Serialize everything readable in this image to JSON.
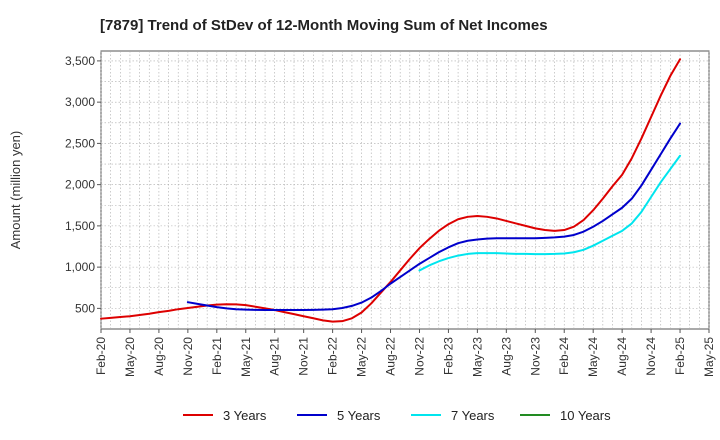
{
  "chart_data": {
    "type": "line",
    "title": "[7879]  Trend of StDev of 12-Month Moving Sum of Net Incomes",
    "xlabel": "",
    "ylabel": "Amount (million yen)",
    "x_ticks": [
      "Feb-20",
      "May-20",
      "Aug-20",
      "Nov-20",
      "Feb-21",
      "May-21",
      "Aug-21",
      "Nov-21",
      "Feb-22",
      "May-22",
      "Aug-22",
      "Nov-22",
      "Feb-23",
      "May-23",
      "Aug-23",
      "Nov-23",
      "Feb-24",
      "May-24",
      "Aug-24",
      "Nov-24",
      "Feb-25",
      "May-25"
    ],
    "y_ticks": [
      500,
      1000,
      1500,
      2000,
      2500,
      3000,
      3500
    ],
    "y_tick_labels": [
      "500",
      "1,000",
      "1,500",
      "2,000",
      "2,500",
      "3,000",
      "3,500"
    ],
    "ylim": [
      250,
      3620
    ],
    "xlim": [
      "Feb-20",
      "May-25"
    ],
    "grid": true,
    "legend_position": "bottom",
    "series": [
      {
        "name": "3 Years",
        "color": "#dd0000",
        "x": [
          "Feb-20",
          "Mar-20",
          "Apr-20",
          "May-20",
          "Jun-20",
          "Jul-20",
          "Aug-20",
          "Sep-20",
          "Oct-20",
          "Nov-20",
          "Dec-20",
          "Jan-21",
          "Feb-21",
          "Mar-21",
          "Apr-21",
          "May-21",
          "Jun-21",
          "Jul-21",
          "Aug-21",
          "Sep-21",
          "Oct-21",
          "Nov-21",
          "Dec-21",
          "Jan-22",
          "Feb-22",
          "Mar-22",
          "Apr-22",
          "May-22",
          "Jun-22",
          "Jul-22",
          "Aug-22",
          "Sep-22",
          "Oct-22",
          "Nov-22",
          "Dec-22",
          "Jan-23",
          "Feb-23",
          "Mar-23",
          "Apr-23",
          "May-23",
          "Jun-23",
          "Jul-23",
          "Aug-23",
          "Sep-23",
          "Oct-23",
          "Nov-23",
          "Dec-23",
          "Jan-24",
          "Feb-24",
          "Mar-24",
          "Apr-24",
          "May-24",
          "Jun-24",
          "Jul-24",
          "Aug-24",
          "Sep-24",
          "Oct-24",
          "Nov-24",
          "Dec-24",
          "Jan-25",
          "Feb-25"
        ],
        "values": [
          375,
          385,
          395,
          405,
          420,
          435,
          455,
          470,
          490,
          505,
          520,
          535,
          545,
          550,
          548,
          540,
          520,
          500,
          480,
          455,
          430,
          405,
          380,
          355,
          340,
          345,
          380,
          450,
          560,
          690,
          820,
          960,
          1100,
          1230,
          1340,
          1440,
          1520,
          1580,
          1610,
          1620,
          1610,
          1590,
          1560,
          1530,
          1500,
          1470,
          1450,
          1440,
          1450,
          1490,
          1570,
          1690,
          1830,
          1980,
          2120,
          2320,
          2560,
          2820,
          3080,
          3320,
          3520
        ]
      },
      {
        "name": "5 Years",
        "color": "#0000cc",
        "x": [
          "Nov-20",
          "Dec-20",
          "Jan-21",
          "Feb-21",
          "Mar-21",
          "Apr-21",
          "May-21",
          "Jun-21",
          "Jul-21",
          "Aug-21",
          "Sep-21",
          "Oct-21",
          "Nov-21",
          "Dec-21",
          "Jan-22",
          "Feb-22",
          "Mar-22",
          "Apr-22",
          "May-22",
          "Jun-22",
          "Jul-22",
          "Aug-22",
          "Sep-22",
          "Oct-22",
          "Nov-22",
          "Dec-22",
          "Jan-23",
          "Feb-23",
          "Mar-23",
          "Apr-23",
          "May-23",
          "Jun-23",
          "Jul-23",
          "Aug-23",
          "Sep-23",
          "Oct-23",
          "Nov-23",
          "Dec-23",
          "Jan-24",
          "Feb-24",
          "Mar-24",
          "Apr-24",
          "May-24",
          "Jun-24",
          "Jul-24",
          "Aug-24",
          "Sep-24",
          "Oct-24",
          "Nov-24",
          "Dec-24",
          "Jan-25",
          "Feb-25"
        ],
        "values": [
          575,
          555,
          535,
          515,
          500,
          490,
          485,
          482,
          480,
          480,
          480,
          480,
          480,
          482,
          485,
          490,
          505,
          530,
          570,
          630,
          710,
          800,
          880,
          960,
          1040,
          1110,
          1180,
          1240,
          1290,
          1320,
          1335,
          1345,
          1350,
          1350,
          1350,
          1350,
          1350,
          1355,
          1360,
          1370,
          1390,
          1430,
          1490,
          1560,
          1640,
          1720,
          1830,
          1990,
          2180,
          2370,
          2560,
          2740
        ]
      },
      {
        "name": "7 Years",
        "color": "#00e5ee",
        "x": [
          "Nov-22",
          "Dec-22",
          "Jan-23",
          "Feb-23",
          "Mar-23",
          "Apr-23",
          "May-23",
          "Jun-23",
          "Jul-23",
          "Aug-23",
          "Sep-23",
          "Oct-23",
          "Nov-23",
          "Dec-23",
          "Jan-24",
          "Feb-24",
          "Mar-24",
          "Apr-24",
          "May-24",
          "Jun-24",
          "Jul-24",
          "Aug-24",
          "Sep-24",
          "Oct-24",
          "Nov-24",
          "Dec-24",
          "Jan-25",
          "Feb-25"
        ],
        "values": [
          960,
          1020,
          1070,
          1110,
          1140,
          1160,
          1170,
          1170,
          1170,
          1165,
          1160,
          1160,
          1158,
          1158,
          1160,
          1165,
          1180,
          1210,
          1260,
          1320,
          1380,
          1440,
          1530,
          1670,
          1850,
          2030,
          2190,
          2350
        ]
      },
      {
        "name": "10 Years",
        "color": "#228b22",
        "x": [],
        "values": []
      }
    ]
  }
}
